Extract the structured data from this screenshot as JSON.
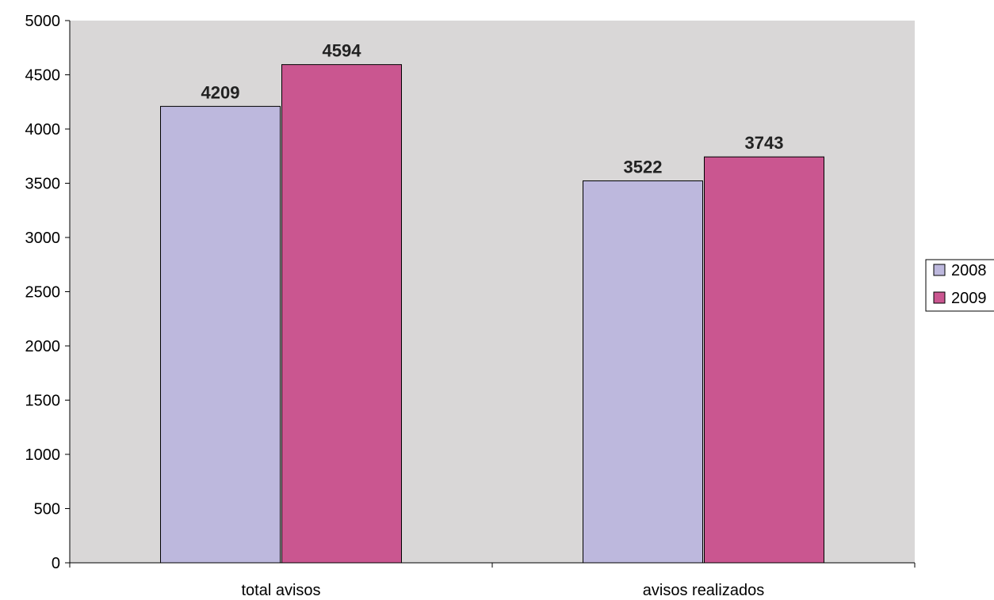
{
  "chart_data": {
    "type": "bar",
    "categories": [
      "total avisos",
      "avisos realizados"
    ],
    "series": [
      {
        "name": "2008",
        "values": [
          4209,
          3522
        ],
        "color": "#BDB8DD"
      },
      {
        "name": "2009",
        "values": [
          4594,
          3743
        ],
        "color": "#CA5690"
      }
    ],
    "ylim": [
      0,
      5000
    ],
    "yticks": [
      "0",
      "500",
      "1000",
      "1500",
      "2000",
      "2500",
      "3000",
      "3500",
      "4000",
      "4500",
      "5000"
    ],
    "grid": false,
    "legend_position": "right",
    "plot_background": "#D9D7D7",
    "data_labels": true
  }
}
